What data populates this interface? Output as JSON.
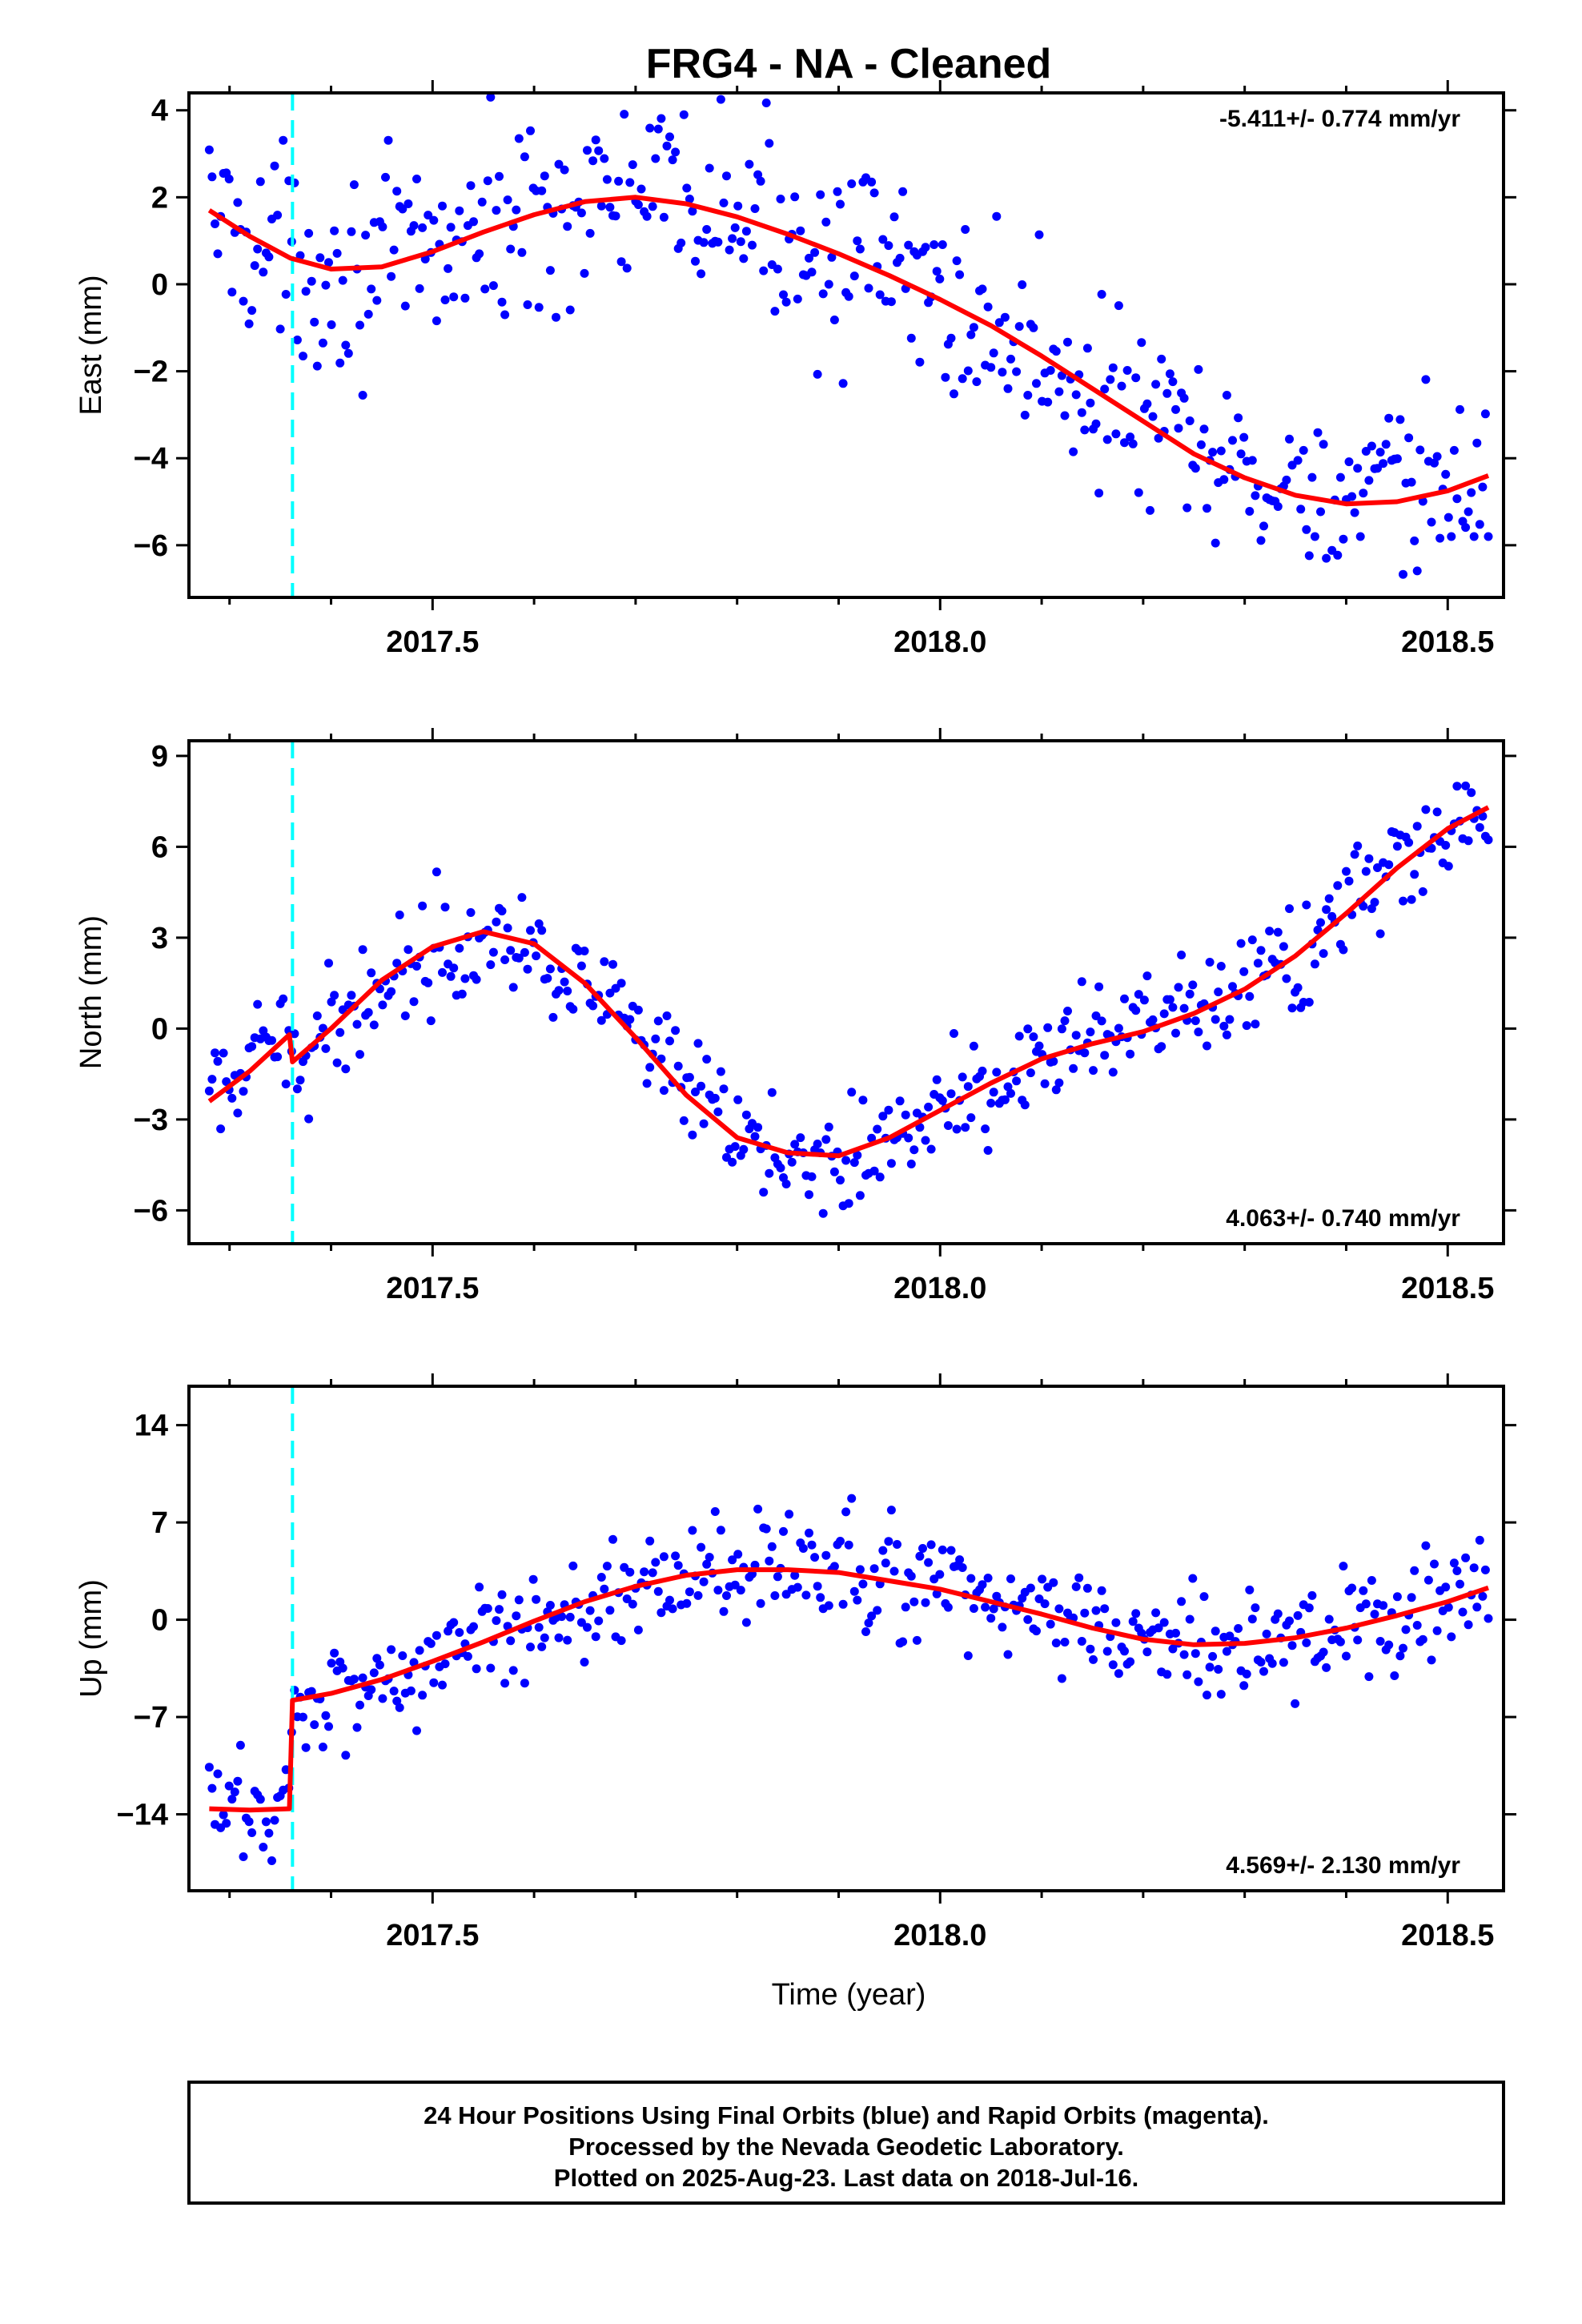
{
  "title": "FRG4  - NA - Cleaned",
  "xlabel": "Time (year)",
  "footer": {
    "line1": "24 Hour Positions Using Final Orbits (blue) and Rapid Orbits (magenta).",
    "line2": "Processed by the Nevada Geodetic Laboratory.",
    "line3": "Plotted on 2025-Aug-23. Last data on 2018-Jul-16."
  },
  "colors": {
    "points": "#0000ff",
    "fit": "#ff0000",
    "offset_line": "#00ffff",
    "frame": "#000000"
  },
  "chart_data": [
    {
      "type": "scatter",
      "ylabel": "East (mm)",
      "rate_text": "-5.411+/- 0.774 mm/yr",
      "rate_position": "top-right",
      "xlim": [
        2017.26,
        2018.555
      ],
      "ylim": [
        -7.2,
        4.4
      ],
      "xticks": [
        2017.5,
        2018.0,
        2018.5
      ],
      "xtick_labels": [
        "2017.5",
        "2018.0",
        "2018.5"
      ],
      "yticks": [
        -6,
        -4,
        -2,
        0,
        2,
        4
      ],
      "ytick_labels": [
        "−6",
        "−4",
        "−2",
        "0",
        "2",
        "4"
      ],
      "offset_epoch": 2017.362,
      "fit": {
        "x": [
          2017.28,
          2017.32,
          2017.36,
          2017.4,
          2017.45,
          2017.5,
          2017.55,
          2017.6,
          2017.65,
          2017.7,
          2017.75,
          2017.8,
          2017.85,
          2017.9,
          2017.95,
          2018.0,
          2018.05,
          2018.1,
          2018.15,
          2018.2,
          2018.25,
          2018.3,
          2018.35,
          2018.4,
          2018.45,
          2018.5,
          2018.54
        ],
        "y": [
          1.7,
          1.1,
          0.6,
          0.35,
          0.4,
          0.75,
          1.2,
          1.6,
          1.9,
          2.0,
          1.85,
          1.55,
          1.15,
          0.7,
          0.2,
          -0.35,
          -0.95,
          -1.65,
          -2.4,
          -3.15,
          -3.9,
          -4.45,
          -4.85,
          -5.05,
          -5.0,
          -4.75,
          -4.4
        ]
      },
      "series": [
        {
          "name": "Final Orbits",
          "x": [],
          "y": []
        }
      ]
    },
    {
      "type": "scatter",
      "ylabel": "North (mm)",
      "rate_text": "4.063+/- 0.740 mm/yr",
      "rate_position": "bottom-right",
      "xlim": [
        2017.26,
        2018.555
      ],
      "ylim": [
        -7.1,
        9.5
      ],
      "xticks": [
        2017.5,
        2018.0,
        2018.5
      ],
      "xtick_labels": [
        "2017.5",
        "2018.0",
        "2018.5"
      ],
      "yticks": [
        -6,
        -3,
        0,
        3,
        6,
        9
      ],
      "ytick_labels": [
        "−6",
        "−3",
        "0",
        "3",
        "6",
        "9"
      ],
      "offset_epoch": 2017.362,
      "fit": {
        "x": [
          2017.28,
          2017.32,
          2017.359,
          2017.362,
          2017.4,
          2017.45,
          2017.5,
          2017.55,
          2017.6,
          2017.65,
          2017.7,
          2017.75,
          2017.8,
          2017.85,
          2017.9,
          2017.95,
          2018.0,
          2018.05,
          2018.1,
          2018.15,
          2018.2,
          2018.25,
          2018.3,
          2018.35,
          2018.4,
          2018.45,
          2018.5,
          2018.54
        ],
        "y": [
          -2.4,
          -1.4,
          -0.2,
          -1.1,
          0.0,
          1.6,
          2.7,
          3.2,
          2.8,
          1.5,
          -0.3,
          -2.2,
          -3.6,
          -4.1,
          -4.2,
          -3.6,
          -2.7,
          -1.8,
          -1.0,
          -0.5,
          -0.1,
          0.5,
          1.3,
          2.4,
          3.8,
          5.3,
          6.6,
          7.3
        ]
      },
      "series": [
        {
          "name": "Final Orbits",
          "x": [],
          "y": []
        }
      ]
    },
    {
      "type": "scatter",
      "ylabel": "Up (mm)",
      "rate_text": "4.569+/- 2.130 mm/yr",
      "rate_position": "bottom-right",
      "xlim": [
        2017.26,
        2018.555
      ],
      "ylim": [
        -19.5,
        16.8
      ],
      "xticks": [
        2017.5,
        2018.0,
        2018.5
      ],
      "xtick_labels": [
        "2017.5",
        "2018.0",
        "2018.5"
      ],
      "yticks": [
        -14,
        -7,
        0,
        7,
        14
      ],
      "ytick_labels": [
        "−14",
        "−7",
        "0",
        "7",
        "14"
      ],
      "offset_epoch": 2017.362,
      "fit": {
        "x": [
          2017.28,
          2017.32,
          2017.359,
          2017.362,
          2017.4,
          2017.45,
          2017.5,
          2017.55,
          2017.6,
          2017.65,
          2017.7,
          2017.75,
          2017.8,
          2017.85,
          2017.9,
          2017.95,
          2018.0,
          2018.05,
          2018.1,
          2018.15,
          2018.2,
          2018.25,
          2018.3,
          2018.35,
          2018.4,
          2018.45,
          2018.5,
          2018.54
        ],
        "y": [
          -13.6,
          -13.7,
          -13.6,
          -5.8,
          -5.3,
          -4.3,
          -3.0,
          -1.6,
          -0.1,
          1.3,
          2.4,
          3.2,
          3.6,
          3.6,
          3.4,
          2.8,
          2.2,
          1.3,
          0.4,
          -0.6,
          -1.4,
          -1.8,
          -1.7,
          -1.3,
          -0.6,
          0.3,
          1.3,
          2.3
        ]
      },
      "series": [
        {
          "name": "Final Orbits",
          "x": [],
          "y": []
        }
      ]
    }
  ]
}
